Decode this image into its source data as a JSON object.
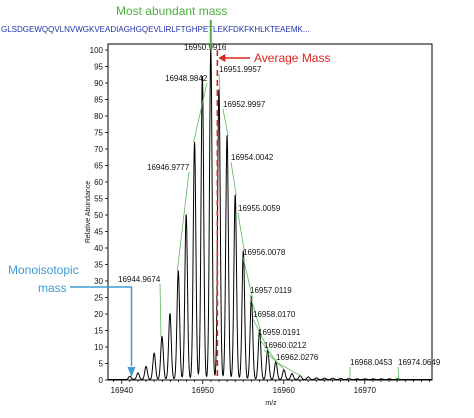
{
  "annotations": {
    "most_abundant": "Most abundant mass",
    "average": "Average Mass",
    "monoisotopic_line1": "Monoisotopic",
    "monoisotopic_line2": "mass"
  },
  "sequence_text": "GLSDGEWQQVLNVWGKVEADIAGHGQEVLIRLFTGHPETLEKFDKFKHLKTEAEMK...",
  "colors": {
    "most_abundant": "#4fae3f",
    "average": "#d9261c",
    "monoisotopic": "#3e9bd6",
    "label_leader": "#5cb85c",
    "trace": "#000000"
  },
  "chart_data": {
    "type": "line",
    "title": "",
    "xlabel": "m/z",
    "ylabel": "Relative Abundance",
    "xlim": [
      16938.3,
      16978.3
    ],
    "ylim": [
      0,
      100
    ],
    "xticks": [
      16940,
      16950,
      16960,
      16970
    ],
    "yticks": [
      0,
      5,
      10,
      15,
      20,
      25,
      30,
      35,
      40,
      45,
      50,
      55,
      60,
      65,
      70,
      75,
      80,
      85,
      90,
      95,
      100
    ],
    "grid": false,
    "peaks": [
      {
        "mz": 16941.0,
        "intensity": 1
      },
      {
        "mz": 16942.0,
        "intensity": 2
      },
      {
        "mz": 16943.0,
        "intensity": 4
      },
      {
        "mz": 16944.0,
        "intensity": 8
      },
      {
        "mz": 16944.9674,
        "intensity": 13,
        "label": "16944.9674"
      },
      {
        "mz": 16945.95,
        "intensity": 20
      },
      {
        "mz": 16946.9777,
        "intensity": 33,
        "label": "16946.9777"
      },
      {
        "mz": 16947.95,
        "intensity": 50
      },
      {
        "mz": 16948.9842,
        "intensity": 72,
        "label": "16948.9842"
      },
      {
        "mz": 16949.95,
        "intensity": 92
      },
      {
        "mz": 16950.9916,
        "intensity": 100,
        "label": "16950.9916"
      },
      {
        "mz": 16951.9957,
        "intensity": 88,
        "label": "16951.9957"
      },
      {
        "mz": 16952.9997,
        "intensity": 74,
        "label": "16952.9997"
      },
      {
        "mz": 16954.0042,
        "intensity": 56,
        "label": "16954.0042"
      },
      {
        "mz": 16955.0059,
        "intensity": 39,
        "label": "16955.0059"
      },
      {
        "mz": 16956.0078,
        "intensity": 25,
        "label": "16956.0078"
      },
      {
        "mz": 16957.0119,
        "intensity": 15,
        "label": "16957.0119"
      },
      {
        "mz": 16958.017,
        "intensity": 9,
        "label": "16958.0170"
      },
      {
        "mz": 16959.0191,
        "intensity": 5.5,
        "label": "16959.0191"
      },
      {
        "mz": 16960.0212,
        "intensity": 3,
        "label": "16960.0212"
      },
      {
        "mz": 16961.02,
        "intensity": 1.8
      },
      {
        "mz": 16962.0276,
        "intensity": 1.2,
        "label": "16962.0276"
      },
      {
        "mz": 16963.03,
        "intensity": 0.8
      },
      {
        "mz": 16964.03,
        "intensity": 0.5
      },
      {
        "mz": 16965.04,
        "intensity": 0.4
      },
      {
        "mz": 16966.04,
        "intensity": 0.4
      },
      {
        "mz": 16967.04,
        "intensity": 0.3
      },
      {
        "mz": 16968.0453,
        "intensity": 0.3,
        "label": "16968.0453"
      },
      {
        "mz": 16969.05,
        "intensity": 0.2
      },
      {
        "mz": 16970.05,
        "intensity": 0.2
      },
      {
        "mz": 16971.05,
        "intensity": 0.2
      },
      {
        "mz": 16972.06,
        "intensity": 0.2
      },
      {
        "mz": 16973.06,
        "intensity": 0.2
      },
      {
        "mz": 16974.0649,
        "intensity": 0.2,
        "label": "16974.0649"
      }
    ],
    "peak_label_offsets_note": "",
    "average_mass_marker_mz": 16951.8,
    "most_abundant_marker_mz": 16950.9916,
    "monoisotopic_marker_mz": 16941.2
  }
}
